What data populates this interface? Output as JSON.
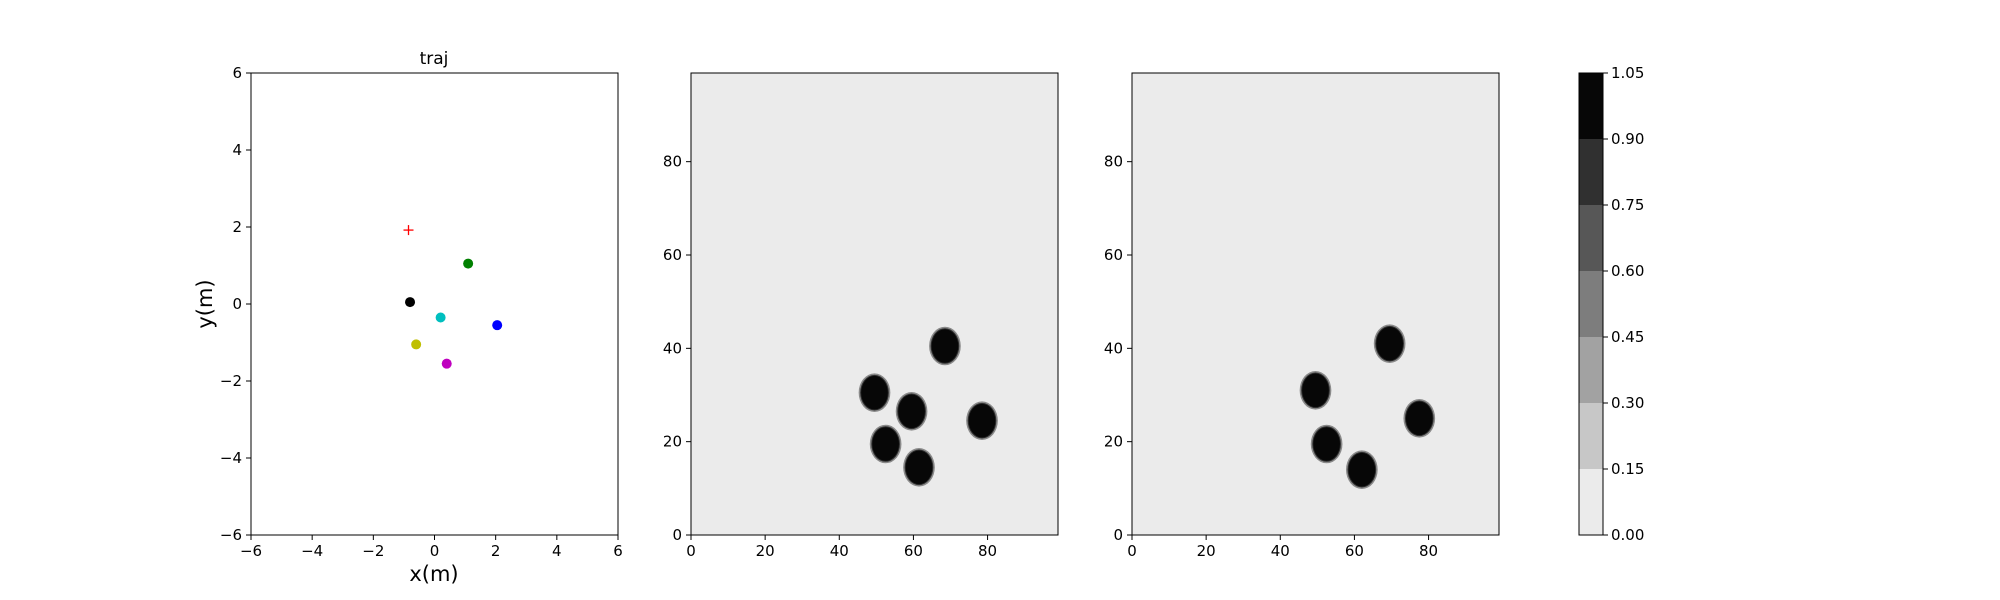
{
  "chart_data": [
    {
      "type": "scatter",
      "title": "traj",
      "xlabel": "x(m)",
      "ylabel": "y(m)",
      "xlim": [
        -6,
        6
      ],
      "ylim": [
        -6,
        6
      ],
      "xticks": [
        -6,
        -4,
        -2,
        0,
        2,
        4,
        6
      ],
      "yticks": [
        -6,
        -4,
        -2,
        0,
        2,
        4,
        6
      ],
      "grid": false,
      "points": [
        {
          "x": -0.8,
          "y": 0.05,
          "color": "#000000",
          "marker": "circle"
        },
        {
          "x": 1.1,
          "y": 1.05,
          "color": "#008000",
          "marker": "circle"
        },
        {
          "x": 0.2,
          "y": -0.35,
          "color": "#00bfbf",
          "marker": "circle"
        },
        {
          "x": 2.05,
          "y": -0.55,
          "color": "#0000ff",
          "marker": "circle"
        },
        {
          "x": -0.6,
          "y": -1.05,
          "color": "#bfbf00",
          "marker": "circle"
        },
        {
          "x": 0.4,
          "y": -1.55,
          "color": "#bf00bf",
          "marker": "circle"
        },
        {
          "x": -0.85,
          "y": 1.92,
          "color": "#ff0000",
          "marker": "plus"
        }
      ]
    },
    {
      "type": "heatmap",
      "xlim": [
        0,
        99
      ],
      "ylim": [
        0,
        99
      ],
      "xticks": [
        0,
        20,
        40,
        60,
        80
      ],
      "yticks": [
        0,
        20,
        40,
        60,
        80
      ],
      "background": 0.0,
      "blobs": [
        {
          "x": 68.5,
          "y": 40.5,
          "value": 1.0
        },
        {
          "x": 49.5,
          "y": 30.5,
          "value": 1.0
        },
        {
          "x": 59.5,
          "y": 26.5,
          "value": 1.0
        },
        {
          "x": 78.5,
          "y": 24.5,
          "value": 1.0
        },
        {
          "x": 52.5,
          "y": 19.5,
          "value": 1.0
        },
        {
          "x": 61.5,
          "y": 14.5,
          "value": 1.0
        }
      ]
    },
    {
      "type": "heatmap",
      "xlim": [
        0,
        99
      ],
      "ylim": [
        0,
        99
      ],
      "xticks": [
        0,
        20,
        40,
        60,
        80
      ],
      "yticks": [
        0,
        20,
        40,
        60,
        80
      ],
      "background": 0.0,
      "blobs": [
        {
          "x": 69.5,
          "y": 41.0,
          "value": 1.0
        },
        {
          "x": 49.5,
          "y": 31.0,
          "value": 1.0
        },
        {
          "x": 77.5,
          "y": 25.0,
          "value": 1.0
        },
        {
          "x": 52.5,
          "y": 19.5,
          "value": 1.0
        },
        {
          "x": 62.0,
          "y": 14.0,
          "value": 1.0
        }
      ]
    }
  ],
  "colorbar": {
    "ticks": [
      "0.00",
      "0.15",
      "0.30",
      "0.45",
      "0.60",
      "0.75",
      "0.90",
      "1.05"
    ],
    "levels": [
      0.0,
      0.15,
      0.3,
      0.45,
      0.6,
      0.75,
      0.9,
      1.05
    ],
    "colors": [
      "#ebebeb",
      "#c7c7c7",
      "#a2a2a2",
      "#7d7d7d",
      "#575757",
      "#303030",
      "#070707"
    ]
  }
}
